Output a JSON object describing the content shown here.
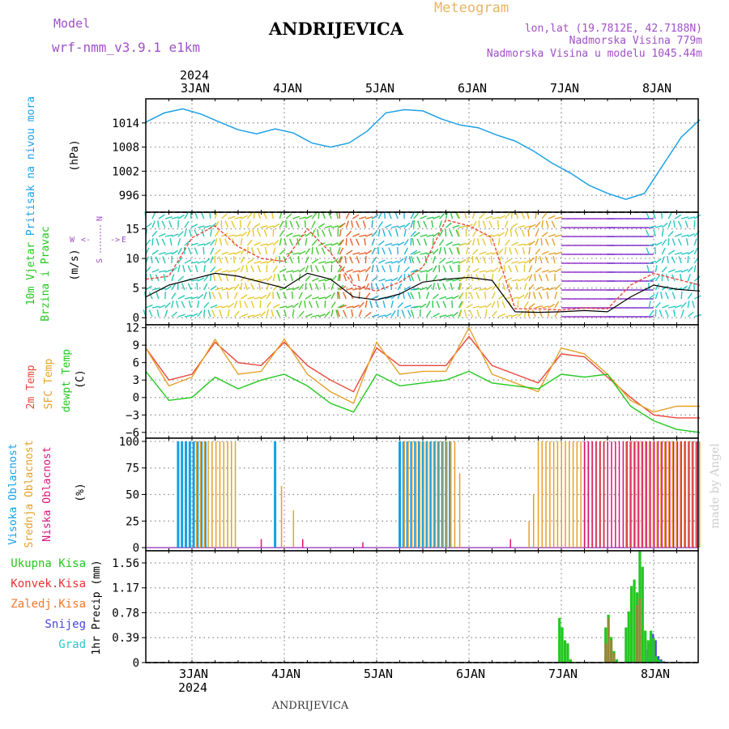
{
  "header": {
    "model_label": "Model",
    "model_name": "wrf-nmm_v3.9.1 e1km",
    "station": "ANDRIJEVICA",
    "product": "Meteogram",
    "lonlat": "lon,lat (19.7812E, 42.7188N)",
    "elevation": "Nadmorska Visina 779m",
    "model_elevation": "Nadmorska Visina u modelu 1045.44m",
    "footer_station": "ANDRIJEVICA",
    "credit": "made by Angel"
  },
  "colors": {
    "pressure": "#1ea0e6",
    "temp2m": "#e8483c",
    "sfc": "#e6a028",
    "dewpt": "#22c81e",
    "high_cloud": "#14a0e6",
    "mid_cloud": "#e6a028",
    "low_cloud": "#d8147a",
    "total_precip": "#22c81e",
    "conv_precip": "#e63232",
    "frozen_precip": "#f07828",
    "snow": "#4646dc",
    "hail": "#28c8c8",
    "model_color": "#a050c8",
    "product_color": "#e6b464"
  },
  "chart_data": [
    {
      "type": "line",
      "ylabel": "Pritisak na nivou mora",
      "unit": "(hPa)",
      "yticks": [
        996,
        1002,
        1008,
        1014
      ],
      "ylim": [
        991.8,
        1020
      ],
      "top_year": "2024",
      "day_labels": [
        "3JAN",
        "4JAN",
        "5JAN",
        "6JAN",
        "7JAN",
        "8JAN"
      ],
      "x": [
        0,
        0.2,
        0.4,
        0.6,
        0.8,
        1.0,
        1.2,
        1.4,
        1.6,
        1.8,
        2.0,
        2.2,
        2.4,
        2.6,
        2.8,
        3.0,
        3.2,
        3.4,
        3.6,
        3.8,
        4.0,
        4.2,
        4.4,
        4.6,
        4.8,
        5.0,
        5.2,
        5.4,
        5.6,
        5.8,
        6.0
      ],
      "series": [
        {
          "values": [
            1014.2,
            1016.5,
            1017.5,
            1016.2,
            1014.2,
            1012.3,
            1011.3,
            1012.5,
            1011.5,
            1009.0,
            1008.0,
            1009.0,
            1012.0,
            1016.5,
            1017.3,
            1017.0,
            1015.0,
            1013.5,
            1012.8,
            1011.0,
            1009.5,
            1007.0,
            1004.0,
            1001.5,
            998.5,
            996.5,
            995.0,
            996.5,
            1003.5,
            1010.5,
            1014.8
          ]
        }
      ]
    },
    {
      "type": "line",
      "ylabel": "10m Vjetar Brzina i Pravac",
      "unit": "(m/s)",
      "compass": {
        "n": "N",
        "w": "W",
        "e": "E",
        "s": "S"
      },
      "yticks": [
        0,
        5,
        10,
        15
      ],
      "ylim": [
        -1.2,
        17.8
      ],
      "x": [
        0,
        0.25,
        0.5,
        0.75,
        1.0,
        1.25,
        1.5,
        1.75,
        2.0,
        2.25,
        2.5,
        2.75,
        3.0,
        3.25,
        3.5,
        3.75,
        4.0,
        4.25,
        4.5,
        4.75,
        5.0,
        5.25,
        5.5,
        5.75,
        6.0
      ],
      "series": [
        {
          "name": "mean",
          "values": [
            3.5,
            5.5,
            6.5,
            7.5,
            7.0,
            6.0,
            5.0,
            7.5,
            6.5,
            3.5,
            3.0,
            4.0,
            6.0,
            6.5,
            6.8,
            6.3,
            1.0,
            0.9,
            1.0,
            1.2,
            1.0,
            3.5,
            5.5,
            4.8,
            4.5
          ]
        },
        {
          "name": "gust",
          "values": [
            6.5,
            7.0,
            13.5,
            15.5,
            12.0,
            10.0,
            9.5,
            15.0,
            11.0,
            5.5,
            4.5,
            6.0,
            8.5,
            16.5,
            15.5,
            13.5,
            1.5,
            1.5,
            1.3,
            1.6,
            1.5,
            5.5,
            7.5,
            6.5,
            5.5
          ]
        }
      ]
    },
    {
      "type": "line",
      "ylabel": [
        "2m Temp",
        "SFC Temp",
        "dewpt Temp"
      ],
      "unit": "(C)",
      "yticks": [
        -6,
        -3,
        0,
        3,
        6,
        9,
        12
      ],
      "ylim": [
        -7,
        12.5
      ],
      "x": [
        0,
        0.25,
        0.5,
        0.75,
        1.0,
        1.25,
        1.5,
        1.75,
        2.0,
        2.25,
        2.5,
        2.75,
        3.0,
        3.25,
        3.5,
        3.75,
        4.0,
        4.25,
        4.5,
        4.75,
        5.0,
        5.25,
        5.5,
        5.75,
        6.0
      ],
      "series": [
        {
          "name": "2m Temp",
          "values": [
            8.5,
            3.0,
            4.0,
            9.5,
            6.0,
            5.5,
            9.5,
            5.5,
            3.0,
            1.0,
            8.5,
            5.5,
            5.5,
            5.5,
            10.5,
            5.5,
            4.0,
            2.5,
            7.5,
            7.0,
            3.5,
            0.0,
            -3.0,
            -3.5,
            -3.5
          ]
        },
        {
          "name": "SFC Temp",
          "values": [
            8.5,
            2.0,
            3.5,
            10.0,
            4.0,
            4.5,
            10.0,
            4.0,
            1.0,
            -1.0,
            9.5,
            4.0,
            4.5,
            4.5,
            12.0,
            4.0,
            2.5,
            1.0,
            8.5,
            7.5,
            4.0,
            -0.5,
            -2.5,
            -1.5,
            -1.5
          ]
        },
        {
          "name": "dewpt Temp",
          "values": [
            4.5,
            -0.5,
            0.0,
            3.5,
            1.5,
            3.0,
            4.0,
            2.0,
            -1.0,
            -2.5,
            4.0,
            2.0,
            2.5,
            3.0,
            4.5,
            2.5,
            2.0,
            1.5,
            4.0,
            3.5,
            4.0,
            -1.5,
            -4.0,
            -5.5,
            -6.0
          ]
        }
      ]
    },
    {
      "type": "bar",
      "ylabel": [
        "Visoka Oblacnost",
        "Srednja Oblacnost",
        "Niska Oblacnost"
      ],
      "unit": "(%)",
      "yticks": [
        0,
        25,
        50,
        75,
        100
      ],
      "ylim": [
        -3,
        103
      ],
      "series": [
        {
          "name": "Visoka Oblacnost",
          "segments": [
            [
              0.35,
              0.65
            ],
            [
              1.4,
              1.42
            ],
            [
              2.75,
              3.3
            ]
          ],
          "value": 100
        },
        {
          "name": "Srednja Oblacnost",
          "segments": [
            [
              0.55,
              1.0
            ],
            [
              2.8,
              3.35
            ],
            [
              4.25,
              5.0
            ],
            [
              5.2,
              6.0
            ]
          ],
          "value": 100
        },
        {
          "name": "Niska Oblacnost",
          "segments": [
            [
              4.75,
              6.0
            ]
          ],
          "value": 100
        }
      ],
      "spikes": [
        {
          "series": "Srednja Oblacnost",
          "x": 1.47,
          "value": 58
        },
        {
          "series": "Srednja Oblacnost",
          "x": 1.6,
          "value": 35
        },
        {
          "series": "Srednja Oblacnost",
          "x": 3.4,
          "value": 70
        },
        {
          "series": "Srednja Oblacnost",
          "x": 4.15,
          "value": 25
        },
        {
          "series": "Srednja Oblacnost",
          "x": 4.2,
          "value": 50
        },
        {
          "series": "Niska Oblacnost",
          "x": 1.25,
          "value": 8
        },
        {
          "series": "Niska Oblacnost",
          "x": 1.7,
          "value": 8
        },
        {
          "series": "Niska Oblacnost",
          "x": 2.35,
          "value": 5
        },
        {
          "series": "Niska Oblacnost",
          "x": 3.95,
          "value": 8
        }
      ]
    },
    {
      "type": "bar",
      "ylabel": "1hr Precip",
      "unit": "(mm)",
      "legend": [
        "Ukupna Kisa",
        "Konvek.Kisa",
        "Zaledj.Kisa",
        "Snijeg",
        "Grad"
      ],
      "yticks": [
        0,
        0.39,
        0.78,
        1.17,
        1.56
      ],
      "ylim": [
        0,
        1.75
      ],
      "bottom_year": "2024",
      "day_labels": [
        "3JAN",
        "4JAN",
        "5JAN",
        "6JAN",
        "7JAN",
        "8JAN"
      ],
      "x": [
        4.48,
        4.51,
        4.54,
        4.57,
        4.6,
        4.98,
        5.01,
        5.04,
        5.07,
        5.1,
        5.2,
        5.23,
        5.26,
        5.29,
        5.32,
        5.35,
        5.38,
        5.41,
        5.44,
        5.47,
        5.5,
        5.53,
        5.56,
        5.59
      ],
      "series": [
        {
          "name": "Ukupna Kisa",
          "values": [
            0.7,
            0.55,
            0.35,
            0.3,
            0.05,
            0.55,
            0.75,
            0.4,
            0.18,
            0.05,
            0.55,
            0.8,
            1.2,
            1.3,
            1.1,
            1.9,
            1.5,
            0.5,
            0.35,
            0.5,
            0.38,
            0.1,
            0.05,
            0.02
          ]
        },
        {
          "name": "Konvek.Kisa",
          "values": [
            0,
            0,
            0,
            0,
            0,
            0.3,
            0.7,
            0.35,
            0.15,
            0,
            0,
            0,
            0,
            0,
            0.9,
            1.0,
            0,
            0,
            0,
            0,
            0,
            0,
            0,
            0
          ]
        },
        {
          "name": "Snijeg",
          "values": [
            0,
            0,
            0,
            0,
            0,
            0,
            0,
            0,
            0,
            0,
            0,
            0,
            0,
            0,
            0,
            0,
            0,
            0.2,
            0.3,
            0.45,
            0.35,
            0.1,
            0.05,
            0.02
          ]
        }
      ]
    }
  ]
}
